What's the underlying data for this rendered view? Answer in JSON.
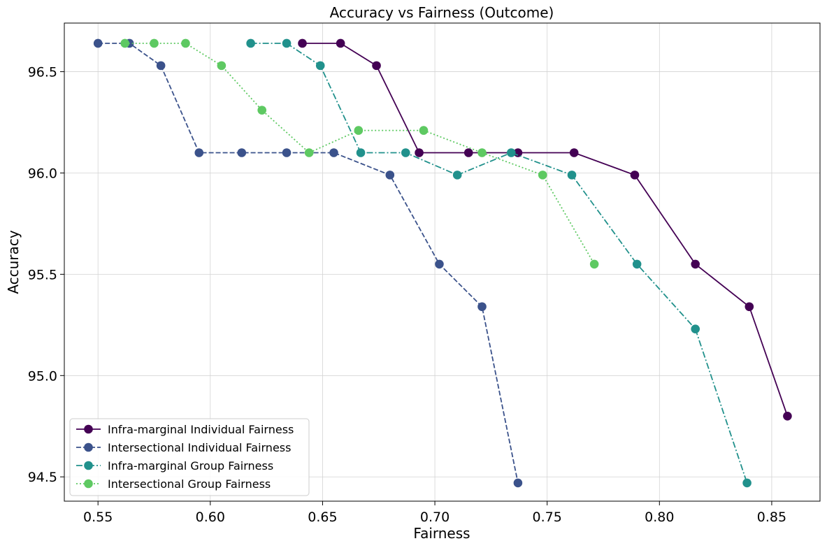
{
  "chart_data": {
    "type": "line",
    "title": "Accuracy vs Fairness (Outcome)",
    "xlabel": "Fairness",
    "ylabel": "Accuracy",
    "xlim": [
      0.535,
      0.8715
    ],
    "ylim": [
      94.38,
      96.74
    ],
    "xticks": [
      "0.55",
      "0.60",
      "0.65",
      "0.70",
      "0.75",
      "0.80",
      "0.85"
    ],
    "yticks": [
      "94.5",
      "95.0",
      "95.5",
      "96.0",
      "96.5"
    ],
    "grid": true,
    "legend_position": "lower-left",
    "series": [
      {
        "name": "Infra-marginal Individual Fairness",
        "color": "#440154",
        "linestyle": "solid",
        "x": [
          0.641,
          0.658,
          0.674,
          0.693,
          0.715,
          0.737,
          0.762,
          0.789,
          0.816,
          0.84,
          0.857
        ],
        "y": [
          96.64,
          96.64,
          96.53,
          96.1,
          96.1,
          96.1,
          96.1,
          95.99,
          95.55,
          95.34,
          94.8
        ]
      },
      {
        "name": "Intersectional Individual Fairness",
        "color": "#3b528b",
        "linestyle": "dashed",
        "x": [
          0.55,
          0.564,
          0.578,
          0.595,
          0.614,
          0.634,
          0.655,
          0.68,
          0.702,
          0.721,
          0.737
        ],
        "y": [
          96.64,
          96.64,
          96.53,
          96.1,
          96.1,
          96.1,
          96.1,
          95.99,
          95.55,
          95.34,
          94.47
        ]
      },
      {
        "name": "Infra-marginal Group Fairness",
        "color": "#21918c",
        "linestyle": "dashdot",
        "x": [
          0.618,
          0.634,
          0.649,
          0.667,
          0.687,
          0.71,
          0.734,
          0.761,
          0.79,
          0.816,
          0.839
        ],
        "y": [
          96.64,
          96.64,
          96.53,
          96.1,
          96.1,
          95.99,
          96.1,
          95.99,
          95.55,
          95.23,
          94.47
        ]
      },
      {
        "name": "Intersectional Group Fairness",
        "color": "#5ec962",
        "linestyle": "dotted",
        "x": [
          0.562,
          0.575,
          0.589,
          0.605,
          0.623,
          0.644,
          0.666,
          0.695,
          0.721,
          0.748,
          0.771
        ],
        "y": [
          96.64,
          96.64,
          96.64,
          96.53,
          96.31,
          96.1,
          96.21,
          96.21,
          96.1,
          95.99,
          95.55
        ]
      }
    ]
  }
}
